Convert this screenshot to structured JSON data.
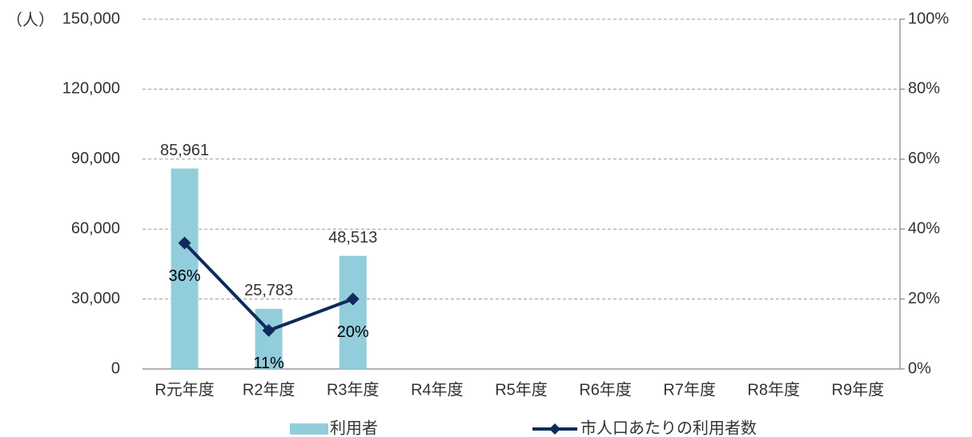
{
  "chart_data": {
    "type": "bar",
    "y_unit_label": "（人）",
    "categories": [
      "R元年度",
      "R2年度",
      "R3年度",
      "R4年度",
      "R5年度",
      "R6年度",
      "R7年度",
      "R8年度",
      "R9年度"
    ],
    "series": [
      {
        "name": "利用者",
        "type": "bar",
        "color": "#92cddc",
        "values": [
          85961,
          25783,
          48513,
          null,
          null,
          null,
          null,
          null,
          null
        ],
        "value_labels": [
          "85,961",
          "25,783",
          "48,513",
          null,
          null,
          null,
          null,
          null,
          null
        ]
      },
      {
        "name": "市人口あたりの利用者数",
        "type": "line",
        "axis": "y2",
        "color": "#0e2a5c",
        "values": [
          36,
          11,
          20,
          null,
          null,
          null,
          null,
          null,
          null
        ],
        "value_labels": [
          "36%",
          "11%",
          "20%",
          null,
          null,
          null,
          null,
          null,
          null
        ]
      }
    ],
    "ylim": [
      0,
      150000
    ],
    "yticks": [
      0,
      {
        "value": 30000,
        "label": "30,000"
      },
      {
        "value": 60000,
        "label": "60,000"
      },
      {
        "value": 90000,
        "label": "90,000"
      },
      {
        "value": 120000,
        "label": "120,000"
      },
      {
        "value": 150000,
        "label": "150,000"
      }
    ],
    "y2lim": [
      0,
      100
    ],
    "y2ticks": [
      {
        "value": 0,
        "label": "0%"
      },
      {
        "value": 20,
        "label": "20%"
      },
      {
        "value": 40,
        "label": "40%"
      },
      {
        "value": 60,
        "label": "60%"
      },
      {
        "value": 80,
        "label": "80%"
      },
      {
        "value": 100,
        "label": "100%"
      }
    ],
    "grid": true,
    "legend": "bottom"
  }
}
